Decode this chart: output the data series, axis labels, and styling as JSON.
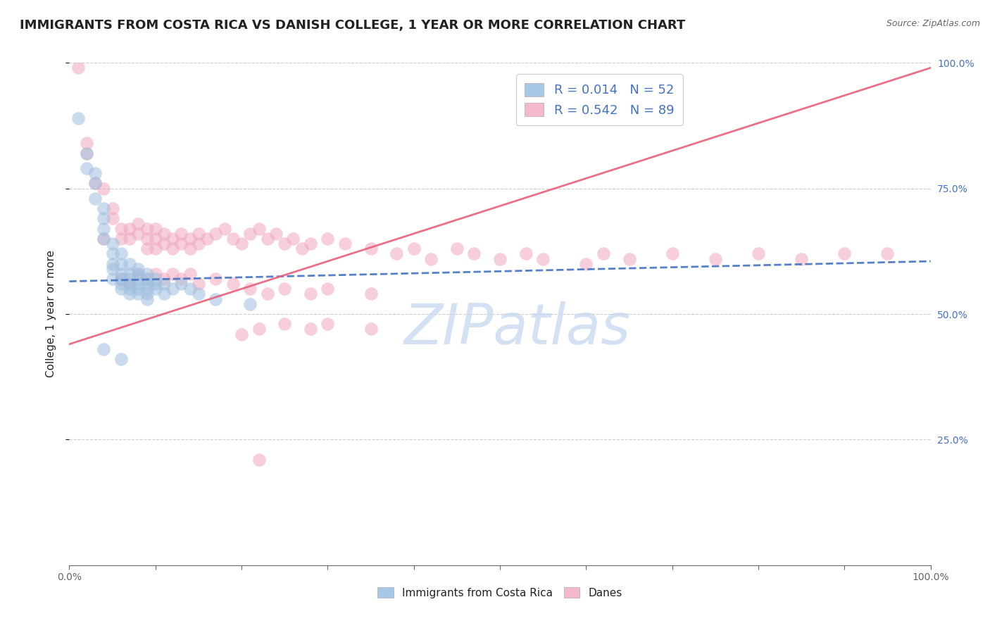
{
  "title": "IMMIGRANTS FROM COSTA RICA VS DANISH COLLEGE, 1 YEAR OR MORE CORRELATION CHART",
  "source": "Source: ZipAtlas.com",
  "ylabel": "College, 1 year or more",
  "xlim": [
    0.0,
    1.0
  ],
  "ylim": [
    0.0,
    1.0
  ],
  "xtick_positions": [
    0.0,
    0.1,
    0.2,
    0.3,
    0.4,
    0.5,
    0.6,
    0.7,
    0.8,
    0.9,
    1.0
  ],
  "xtick_labels_show": {
    "0.0": "0.0%",
    "1.0": "100.0%"
  },
  "ytick_positions": [
    0.25,
    0.5,
    0.75,
    1.0
  ],
  "right_ytick_labels": [
    "25.0%",
    "50.0%",
    "75.0%",
    "100.0%"
  ],
  "watermark_text": "ZIPatlas",
  "scatter_blue": [
    [
      0.01,
      0.89
    ],
    [
      0.02,
      0.82
    ],
    [
      0.02,
      0.79
    ],
    [
      0.03,
      0.78
    ],
    [
      0.03,
      0.76
    ],
    [
      0.03,
      0.73
    ],
    [
      0.04,
      0.71
    ],
    [
      0.04,
      0.69
    ],
    [
      0.04,
      0.67
    ],
    [
      0.04,
      0.65
    ],
    [
      0.05,
      0.64
    ],
    [
      0.05,
      0.62
    ],
    [
      0.05,
      0.6
    ],
    [
      0.05,
      0.59
    ],
    [
      0.05,
      0.57
    ],
    [
      0.06,
      0.62
    ],
    [
      0.06,
      0.6
    ],
    [
      0.06,
      0.58
    ],
    [
      0.06,
      0.57
    ],
    [
      0.06,
      0.56
    ],
    [
      0.06,
      0.55
    ],
    [
      0.07,
      0.6
    ],
    [
      0.07,
      0.58
    ],
    [
      0.07,
      0.57
    ],
    [
      0.07,
      0.56
    ],
    [
      0.07,
      0.55
    ],
    [
      0.07,
      0.54
    ],
    [
      0.08,
      0.59
    ],
    [
      0.08,
      0.58
    ],
    [
      0.08,
      0.57
    ],
    [
      0.08,
      0.56
    ],
    [
      0.08,
      0.55
    ],
    [
      0.08,
      0.54
    ],
    [
      0.09,
      0.58
    ],
    [
      0.09,
      0.57
    ],
    [
      0.09,
      0.56
    ],
    [
      0.09,
      0.55
    ],
    [
      0.09,
      0.54
    ],
    [
      0.09,
      0.53
    ],
    [
      0.1,
      0.57
    ],
    [
      0.1,
      0.56
    ],
    [
      0.1,
      0.55
    ],
    [
      0.11,
      0.56
    ],
    [
      0.11,
      0.54
    ],
    [
      0.12,
      0.55
    ],
    [
      0.13,
      0.56
    ],
    [
      0.14,
      0.55
    ],
    [
      0.15,
      0.54
    ],
    [
      0.17,
      0.53
    ],
    [
      0.21,
      0.52
    ],
    [
      0.04,
      0.43
    ],
    [
      0.06,
      0.41
    ]
  ],
  "scatter_pink": [
    [
      0.01,
      0.99
    ],
    [
      0.02,
      0.84
    ],
    [
      0.02,
      0.82
    ],
    [
      0.03,
      0.76
    ],
    [
      0.04,
      0.75
    ],
    [
      0.04,
      0.65
    ],
    [
      0.05,
      0.71
    ],
    [
      0.05,
      0.69
    ],
    [
      0.06,
      0.67
    ],
    [
      0.06,
      0.65
    ],
    [
      0.07,
      0.67
    ],
    [
      0.07,
      0.65
    ],
    [
      0.08,
      0.68
    ],
    [
      0.08,
      0.66
    ],
    [
      0.09,
      0.67
    ],
    [
      0.09,
      0.65
    ],
    [
      0.09,
      0.63
    ],
    [
      0.1,
      0.67
    ],
    [
      0.1,
      0.65
    ],
    [
      0.1,
      0.63
    ],
    [
      0.11,
      0.66
    ],
    [
      0.11,
      0.64
    ],
    [
      0.12,
      0.65
    ],
    [
      0.12,
      0.63
    ],
    [
      0.13,
      0.66
    ],
    [
      0.13,
      0.64
    ],
    [
      0.14,
      0.65
    ],
    [
      0.14,
      0.63
    ],
    [
      0.15,
      0.66
    ],
    [
      0.15,
      0.64
    ],
    [
      0.16,
      0.65
    ],
    [
      0.17,
      0.66
    ],
    [
      0.18,
      0.67
    ],
    [
      0.19,
      0.65
    ],
    [
      0.2,
      0.64
    ],
    [
      0.21,
      0.66
    ],
    [
      0.22,
      0.67
    ],
    [
      0.23,
      0.65
    ],
    [
      0.24,
      0.66
    ],
    [
      0.25,
      0.64
    ],
    [
      0.26,
      0.65
    ],
    [
      0.27,
      0.63
    ],
    [
      0.28,
      0.64
    ],
    [
      0.3,
      0.65
    ],
    [
      0.32,
      0.64
    ],
    [
      0.35,
      0.63
    ],
    [
      0.38,
      0.62
    ],
    [
      0.4,
      0.63
    ],
    [
      0.42,
      0.61
    ],
    [
      0.45,
      0.63
    ],
    [
      0.47,
      0.62
    ],
    [
      0.5,
      0.61
    ],
    [
      0.53,
      0.62
    ],
    [
      0.55,
      0.61
    ],
    [
      0.6,
      0.6
    ],
    [
      0.62,
      0.62
    ],
    [
      0.65,
      0.61
    ],
    [
      0.7,
      0.62
    ],
    [
      0.75,
      0.61
    ],
    [
      0.8,
      0.62
    ],
    [
      0.85,
      0.61
    ],
    [
      0.9,
      0.62
    ],
    [
      0.95,
      0.62
    ],
    [
      0.06,
      0.57
    ],
    [
      0.07,
      0.56
    ],
    [
      0.08,
      0.58
    ],
    [
      0.09,
      0.57
    ],
    [
      0.1,
      0.58
    ],
    [
      0.11,
      0.57
    ],
    [
      0.12,
      0.58
    ],
    [
      0.13,
      0.57
    ],
    [
      0.14,
      0.58
    ],
    [
      0.15,
      0.56
    ],
    [
      0.17,
      0.57
    ],
    [
      0.19,
      0.56
    ],
    [
      0.21,
      0.55
    ],
    [
      0.23,
      0.54
    ],
    [
      0.25,
      0.55
    ],
    [
      0.28,
      0.54
    ],
    [
      0.3,
      0.55
    ],
    [
      0.35,
      0.54
    ],
    [
      0.2,
      0.46
    ],
    [
      0.22,
      0.47
    ],
    [
      0.25,
      0.48
    ],
    [
      0.28,
      0.47
    ],
    [
      0.3,
      0.48
    ],
    [
      0.35,
      0.47
    ],
    [
      0.22,
      0.21
    ]
  ],
  "blue_line_x": [
    0.0,
    1.0
  ],
  "blue_line_y": [
    0.565,
    0.605
  ],
  "pink_line_x": [
    0.0,
    1.0
  ],
  "pink_line_y": [
    0.44,
    0.99
  ],
  "blue_color": "#a0bfdf",
  "pink_color": "#f0a8bf",
  "blue_line_color": "#4472c4",
  "pink_line_color": "#e8607a",
  "legend_blue_color": "#a8c8e8",
  "legend_pink_color": "#f4b8cc",
  "grid_color": "#cccccc",
  "background_color": "#ffffff",
  "title_color": "#222222",
  "axis_color": "#666666",
  "right_axis_color": "#4472c4",
  "watermark_color": "#c5d8ee",
  "title_fontsize": 13,
  "axis_label_fontsize": 11,
  "tick_fontsize": 10,
  "legend_fontsize": 13
}
